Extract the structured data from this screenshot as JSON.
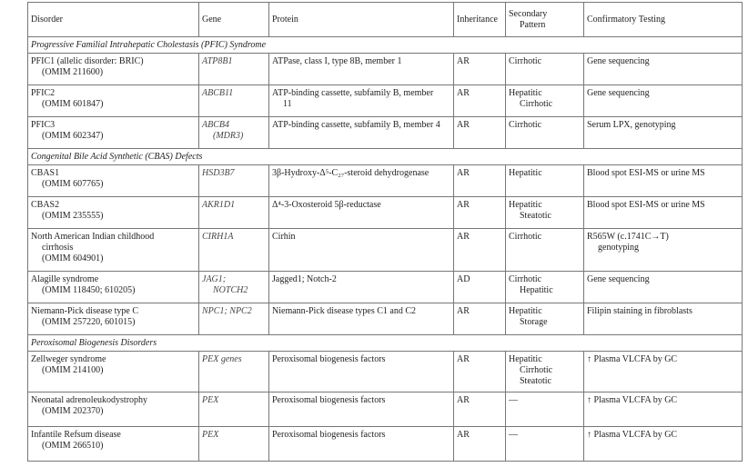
{
  "table": {
    "header": [
      [
        "Disorder"
      ],
      [
        "Gene"
      ],
      [
        "Protein"
      ],
      [
        "Inheritance"
      ],
      [
        "Secondary",
        "Pattern"
      ],
      [
        "Confirmatory Testing"
      ]
    ],
    "sections": [
      {
        "title": "Progressive Familial Intrahepatic Cholestasis (PFIC) Syndrome",
        "rows": [
          [
            [
              "PFIC1 (allelic disorder: BRIC)",
              "(OMIM 211600)"
            ],
            [
              "ATP8B1"
            ],
            [
              "ATPase, class I, type 8B, member 1"
            ],
            [
              "AR"
            ],
            [
              "Cirrhotic"
            ],
            [
              "Gene sequencing"
            ]
          ],
          [
            [
              "PFIC2",
              "(OMIM 601847)"
            ],
            [
              "ABCB11"
            ],
            [
              "ATP-binding cassette, subfamily B, member",
              "11"
            ],
            [
              "AR"
            ],
            [
              "Hepatitic",
              "Cirrhotic"
            ],
            [
              "Gene sequencing"
            ]
          ],
          [
            [
              "PFIC3",
              "(OMIM 602347)"
            ],
            [
              "ABCB4",
              "(MDR3)"
            ],
            [
              "ATP-binding cassette, subfamily B, member 4"
            ],
            [
              "AR"
            ],
            [
              "Cirrhotic"
            ],
            [
              "Serum LPX, genotyping"
            ]
          ]
        ]
      },
      {
        "title": "Congenital Bile Acid Synthetic (CBAS) Defects",
        "rows": [
          [
            [
              "CBAS1",
              "(OMIM 607765)"
            ],
            [
              "HSD3B7"
            ],
            [
              "3β-Hydroxy-Δ⁵-C₂₇-steroid dehydrogenase"
            ],
            [
              "AR"
            ],
            [
              "Hepatitic"
            ],
            [
              "Blood spot ESI-MS or urine MS"
            ]
          ],
          [
            [
              "CBAS2",
              "(OMIM 235555)"
            ],
            [
              "AKR1D1"
            ],
            [
              "Δ⁴-3-Oxosteroid 5β-reductase"
            ],
            [
              "AR"
            ],
            [
              "Hepatitic",
              "Steatotic"
            ],
            [
              "Blood spot ESI-MS or urine MS"
            ]
          ],
          [
            [
              "North American Indian childhood",
              "cirrhosis",
              "(OMIM 604901)"
            ],
            [
              "CIRH1A"
            ],
            [
              "Cirhin"
            ],
            [
              "AR"
            ],
            [
              "Cirrhotic"
            ],
            [
              "R565W (c.1741C→T)",
              "genotyping"
            ]
          ],
          [
            [
              "Alagille syndrome",
              "(OMIM 118450; 610205)"
            ],
            [
              "JAG1;",
              "NOTCH2"
            ],
            [
              "Jagged1; Notch-2"
            ],
            [
              "AD"
            ],
            [
              "Cirrhotic",
              "Hepatitic"
            ],
            [
              "Gene sequencing"
            ]
          ],
          [
            [
              "Niemann-Pick disease type C",
              "(OMIM 257220, 601015)"
            ],
            [
              "NPC1; NPC2"
            ],
            [
              "Niemann-Pick disease types C1 and C2"
            ],
            [
              "AR"
            ],
            [
              "Hepatitic",
              "Storage"
            ],
            [
              "Filipin staining in fibroblasts"
            ]
          ]
        ]
      },
      {
        "title": "Peroxisomal Biogenesis Disorders",
        "rows": [
          [
            [
              "Zellweger syndrome",
              "(OMIM 214100)"
            ],
            [
              "PEX genes"
            ],
            [
              "Peroxisomal biogenesis factors"
            ],
            [
              "AR"
            ],
            [
              "Hepatitic",
              "Cirrhotic",
              "Steatotic"
            ],
            [
              "↑ Plasma VLCFA by GC"
            ]
          ],
          [
            [
              "Neonatal adrenoleukodystrophy",
              "(OMIM 202370)"
            ],
            [
              "PEX"
            ],
            [
              "Peroxisomal biogenesis factors"
            ],
            [
              "AR"
            ],
            [
              "—"
            ],
            [
              "↑ Plasma VLCFA by GC"
            ]
          ],
          [
            [
              "Infantile Refsum disease",
              "(OMIM 266510)"
            ],
            [
              "PEX"
            ],
            [
              "Peroxisomal biogenesis factors"
            ],
            [
              "AR"
            ],
            [
              "—"
            ],
            [
              "↑ Plasma VLCFA by GC"
            ]
          ]
        ]
      }
    ]
  }
}
